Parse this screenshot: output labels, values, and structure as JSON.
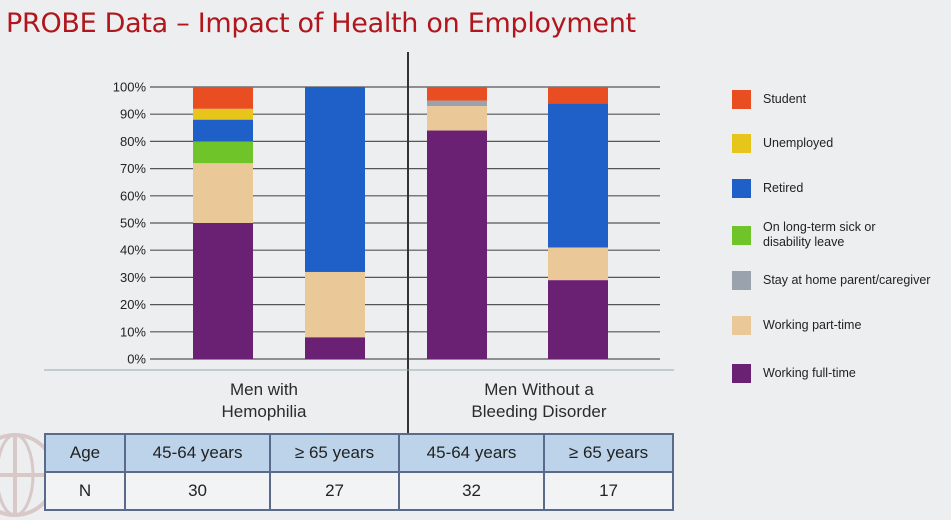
{
  "title": "PROBE Data – Impact of Health on Employment",
  "chart_data": {
    "type": "stacked-bar",
    "y_ticks": [
      "100%",
      "90%",
      "80%",
      "70%",
      "60%",
      "50%",
      "40%",
      "30%",
      "20%",
      "10%",
      "0%"
    ],
    "ylim": [
      0,
      100
    ],
    "grid": true,
    "legend_position": "right",
    "groups": [
      {
        "label_line1": "Men with",
        "label_line2": "Hemophilia"
      },
      {
        "label_line1": "Men Without a",
        "label_line2": "Bleeding Disorder"
      }
    ],
    "bars": [
      {
        "group": 0,
        "age": "45-64 years",
        "n": "30"
      },
      {
        "group": 0,
        "age": "≥ 65 years",
        "n": "27"
      },
      {
        "group": 1,
        "age": "45-64 years",
        "n": "32"
      },
      {
        "group": 1,
        "age": "≥ 65 years",
        "n": "17"
      }
    ],
    "series": [
      {
        "name": "Working full-time",
        "color": "#6b2173",
        "values": [
          50,
          8,
          84,
          29
        ]
      },
      {
        "name": "Working part-time",
        "color": "#ebc898",
        "values": [
          22,
          24,
          9,
          12
        ]
      },
      {
        "name": "Stay at home parent/caregiver",
        "color": "#9aa3ad",
        "values": [
          0,
          0,
          2,
          0
        ]
      },
      {
        "name": "On long-term sick or disability leave",
        "color": "#6fc42a",
        "values": [
          8,
          0,
          0,
          0
        ]
      },
      {
        "name": "Retired",
        "color": "#1f5fc8",
        "values": [
          8,
          68,
          0,
          53
        ]
      },
      {
        "name": "Unemployed",
        "color": "#e8c51a",
        "values": [
          4,
          0,
          0,
          0
        ]
      },
      {
        "name": "Student",
        "color": "#e84e21",
        "values": [
          8,
          0,
          5,
          6
        ]
      }
    ],
    "legend_order": [
      {
        "name": "Student",
        "color": "#e84e21"
      },
      {
        "name": "Unemployed",
        "color": "#e8c51a"
      },
      {
        "name": "Retired",
        "color": "#1f5fc8"
      },
      {
        "name": "On long-term sick or disability leave",
        "color": "#6fc42a"
      },
      {
        "name": "Stay at home parent/caregiver",
        "color": "#9aa3ad"
      },
      {
        "name": "Working part-time",
        "color": "#ebc898"
      },
      {
        "name": "Working full-time",
        "color": "#6b2173"
      }
    ]
  },
  "table": {
    "age_header": "Age",
    "n_header": "N",
    "ages": [
      "45-64 years",
      "≥ 65 years",
      "45-64 years",
      "≥ 65 years"
    ],
    "ns": [
      "30",
      "27",
      "32",
      "17"
    ]
  }
}
